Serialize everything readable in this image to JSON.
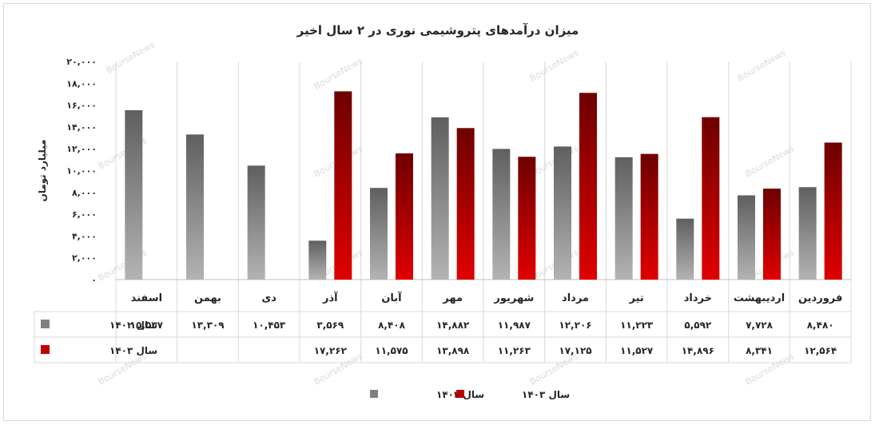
{
  "chart_data": {
    "type": "bar",
    "title": "میزان درآمدهای پتروشیمی نوری در ۲ سال اخیر",
    "ylabel": "میلیارد تومان",
    "xlabel": "",
    "ylim": [
      0,
      20000
    ],
    "yticks": [
      0,
      2000,
      4000,
      6000,
      8000,
      10000,
      12000,
      14000,
      16000,
      18000,
      20000
    ],
    "ytick_labels": [
      "۰",
      "۲,۰۰۰",
      "۴,۰۰۰",
      "۶,۰۰۰",
      "۸,۰۰۰",
      "۱۰,۰۰۰",
      "۱۲,۰۰۰",
      "۱۴,۰۰۰",
      "۱۶,۰۰۰",
      "۱۸,۰۰۰",
      "۲۰,۰۰۰"
    ],
    "categories": [
      "فروردین",
      "اردیبهشت",
      "خرداد",
      "تیر",
      "مرداد",
      "شهریور",
      "مهر",
      "آبان",
      "آذر",
      "دی",
      "بهمن",
      "اسفند"
    ],
    "series": [
      {
        "name": "سال ۱۴۰۲",
        "color": "#8a8a8a",
        "values": [
          8480,
          7728,
          5592,
          11223,
          12206,
          11987,
          14882,
          8408,
          3569,
          10453,
          13309,
          15537
        ],
        "labels": [
          "۸,۴۸۰",
          "۷,۷۲۸",
          "۵,۵۹۲",
          "۱۱,۲۲۳",
          "۱۲,۲۰۶",
          "۱۱,۹۸۷",
          "۱۴,۸۸۲",
          "۸,۴۰۸",
          "۳,۵۶۹",
          "۱۰,۴۵۳",
          "۱۳,۳۰۹",
          "۱۵,۵۳۷"
        ]
      },
      {
        "name": "سال ۱۴۰۳",
        "color": "#c00000",
        "values": [
          12564,
          8341,
          14896,
          11527,
          17125,
          11263,
          13898,
          11575,
          17262,
          null,
          null,
          null
        ],
        "labels": [
          "۱۲,۵۶۴",
          "۸,۳۴۱",
          "۱۴,۸۹۶",
          "۱۱,۵۲۷",
          "۱۷,۱۲۵",
          "۱۱,۲۶۳",
          "۱۳,۸۹۸",
          "۱۱,۵۷۵",
          "۱۷,۲۶۲",
          "",
          "",
          ""
        ]
      }
    ],
    "watermark": "BourseNews",
    "grid": "vertical",
    "legend_position": "bottom",
    "data_table": true
  }
}
